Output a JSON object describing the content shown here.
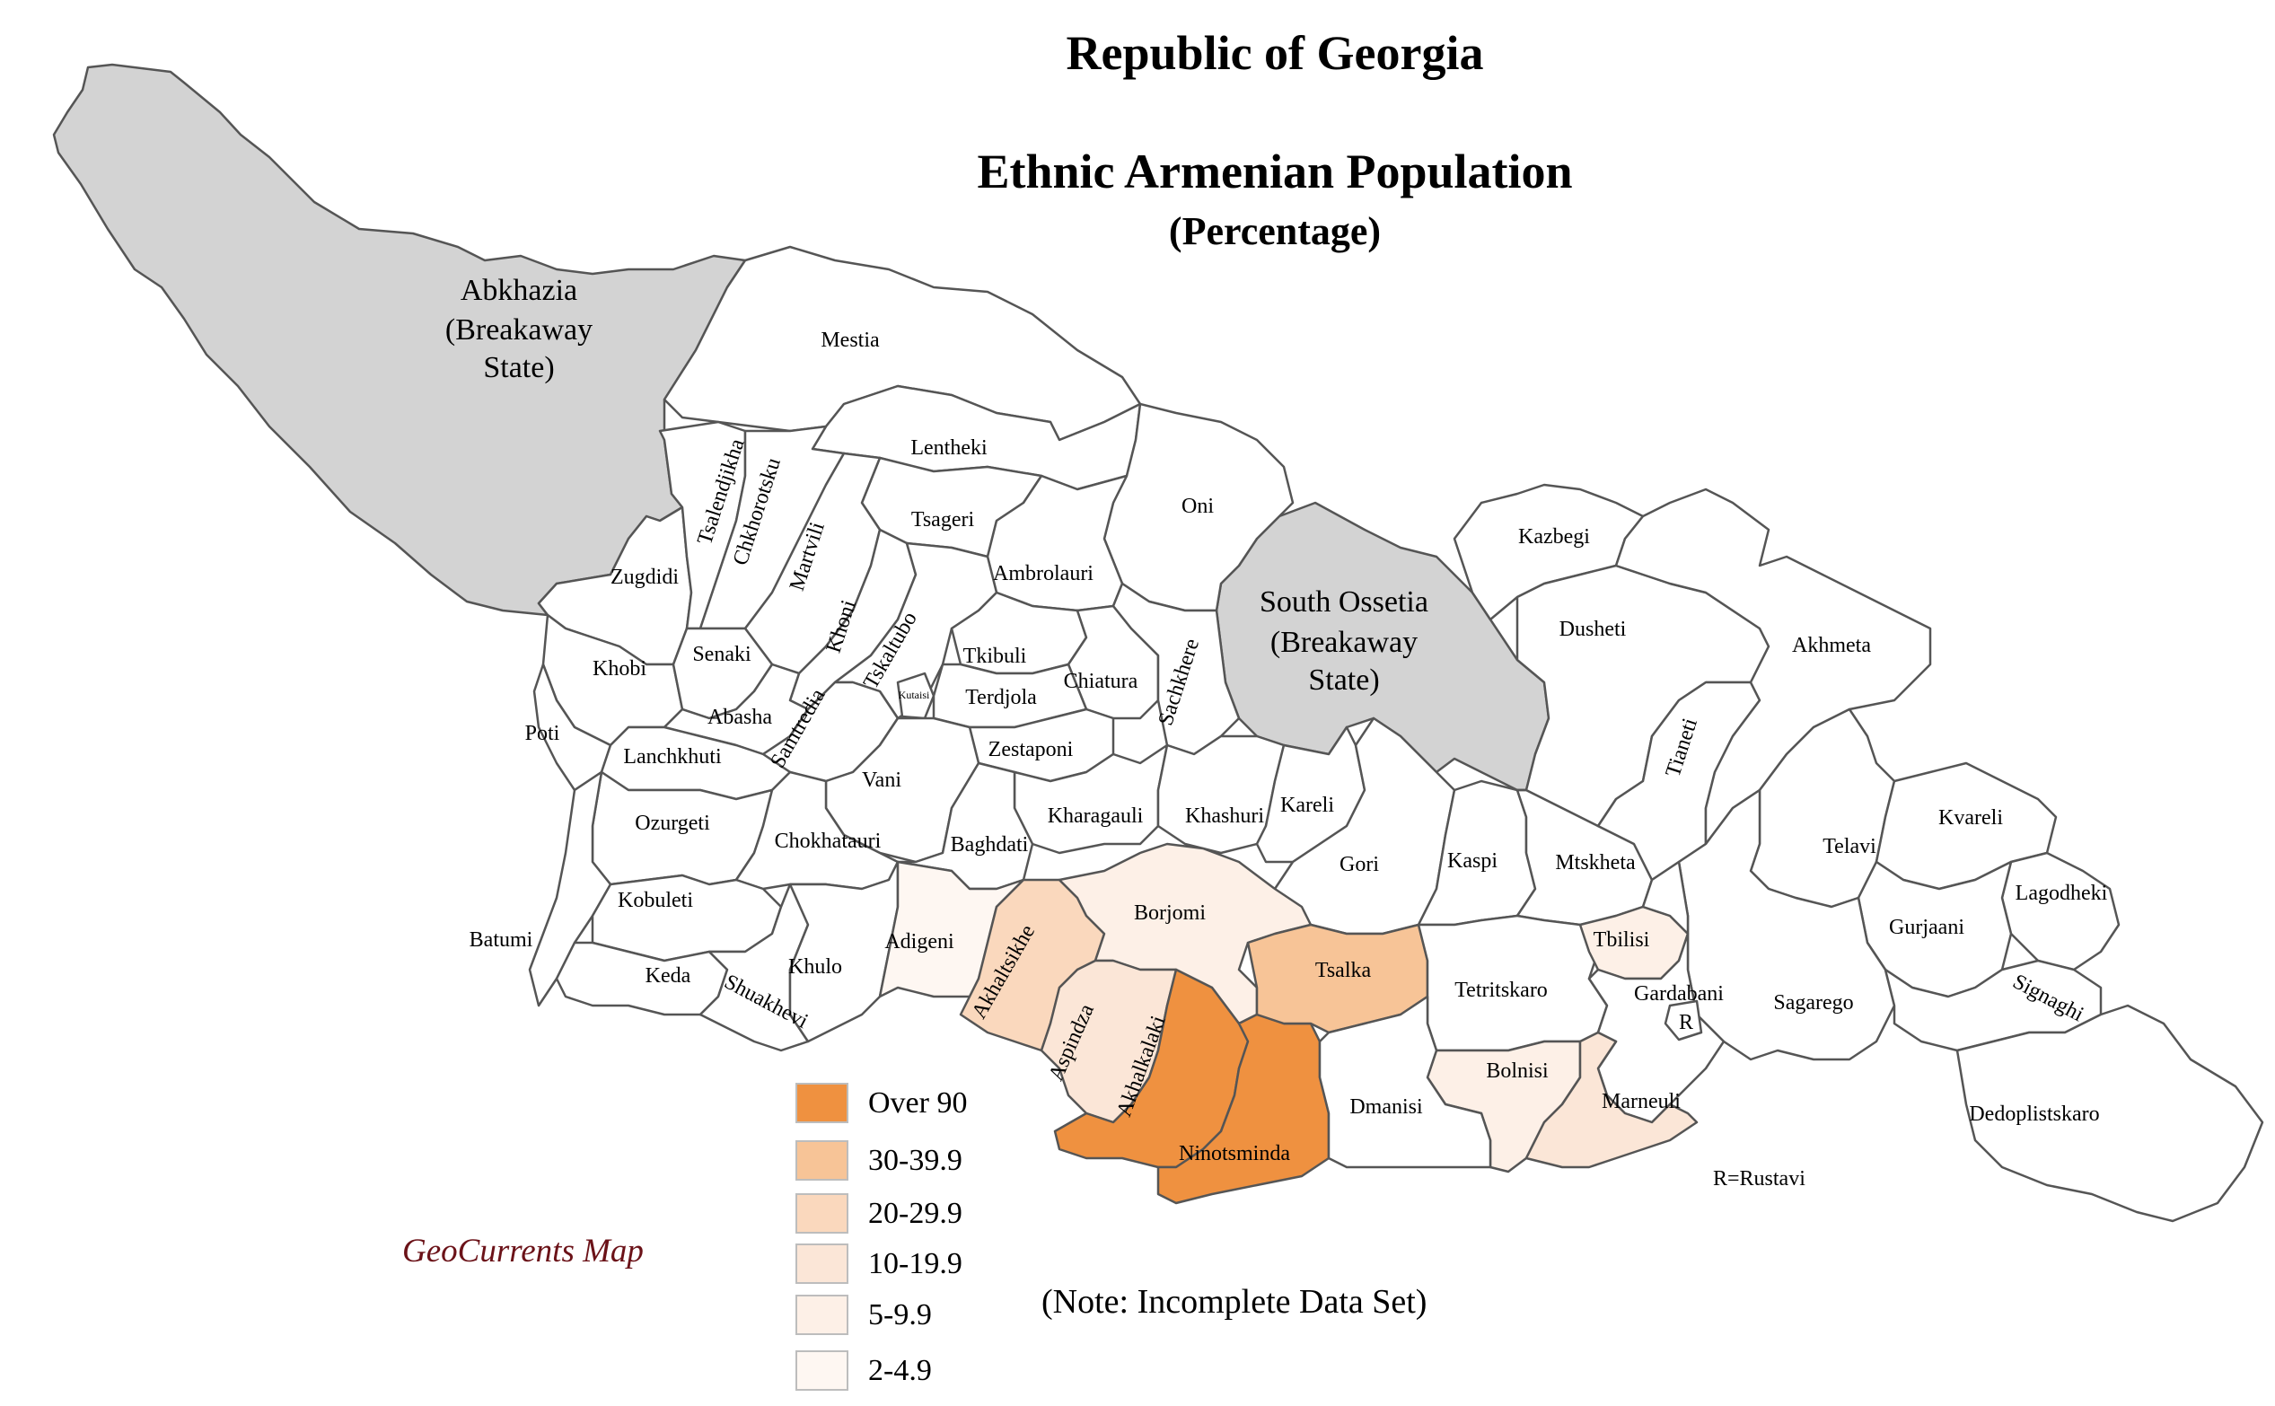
{
  "title": {
    "line1": "Republic of Georgia",
    "line2": "Ethnic Armenian Population",
    "line3": "(Percentage)"
  },
  "colors": {
    "over_90": "#ef9140",
    "c30_39": "#f7c497",
    "c20_29": "#fad8bd",
    "c10_19": "#fbe6d7",
    "c5_9": "#fdf0e7",
    "c2_4": "#fef7f2",
    "none": "#ffffff",
    "breakaway": "#d3d3d3",
    "border": "#555555"
  },
  "legend": [
    {
      "label": "Over 90",
      "color_key": "over_90"
    },
    {
      "label": "30-39.9",
      "color_key": "c30_39"
    },
    {
      "label": "20-29.9",
      "color_key": "c20_29"
    },
    {
      "label": "10-19.9",
      "color_key": "c10_19"
    },
    {
      "label": "5-9.9",
      "color_key": "c5_9"
    },
    {
      "label": "2-4.9",
      "color_key": "c2_4"
    }
  ],
  "regions": {
    "abkhazia": {
      "name": "Abkhazia",
      "sub1": "(Breakaway",
      "sub2": "State)",
      "category": "breakaway"
    },
    "south_ossetia": {
      "name": "South Ossetia",
      "sub1": "(Breakaway",
      "sub2": "State)",
      "category": "breakaway"
    },
    "akhalkalaki": {
      "name": "Akhalkalaki",
      "category": "over_90"
    },
    "ninotsminda": {
      "name": "Ninotsminda",
      "category": "over_90"
    },
    "tsalka": {
      "name": "Tsalka",
      "category": "c30_39"
    },
    "akhaltsikhe": {
      "name": "Akhaltsikhe",
      "category": "c20_29"
    },
    "aspindza": {
      "name": "Aspindza",
      "category": "c10_19"
    },
    "marneuli": {
      "name": "Marneuli",
      "category": "c10_19"
    },
    "borjomi": {
      "name": "Borjomi",
      "category": "c5_9"
    },
    "bolnisi": {
      "name": "Bolnisi",
      "category": "c5_9"
    },
    "tbilisi": {
      "name": "Tbilisi",
      "category": "c5_9"
    },
    "adigeni": {
      "name": "Adigeni",
      "category": "c2_4"
    },
    "mestia": {
      "name": "Mestia",
      "category": "none"
    },
    "lentheki": {
      "name": "Lentheki",
      "category": "none"
    },
    "oni": {
      "name": "Oni",
      "category": "none"
    },
    "tsageri": {
      "name": "Tsageri",
      "category": "none"
    },
    "ambrolauri": {
      "name": "Ambrolauri",
      "category": "none"
    },
    "kazbegi": {
      "name": "Kazbegi",
      "category": "none"
    },
    "dusheti": {
      "name": "Dusheti",
      "category": "none"
    },
    "akhmeta": {
      "name": "Akhmeta",
      "category": "none"
    },
    "tianeti": {
      "name": "Tianeti",
      "category": "none"
    },
    "zugdidi": {
      "name": "Zugdidi",
      "category": "none"
    },
    "tsalendjikha": {
      "name": "Tsalendjikha",
      "category": "none"
    },
    "chkhorotsku": {
      "name": "Chkhorotsku",
      "category": "none"
    },
    "martvili": {
      "name": "Martvili",
      "category": "none"
    },
    "khobi": {
      "name": "Khobi",
      "category": "none"
    },
    "senaki": {
      "name": "Senaki",
      "category": "none"
    },
    "khoni": {
      "name": "Khoni",
      "category": "none"
    },
    "tskaltubo": {
      "name": "Tskaltubo",
      "category": "none"
    },
    "kutaisi": {
      "name": "Kutaisi",
      "category": "none"
    },
    "tkibuli": {
      "name": "Tkibuli",
      "category": "none"
    },
    "chiatura": {
      "name": "Chiatura",
      "category": "none"
    },
    "sachkhere": {
      "name": "Sachkhere",
      "category": "none"
    },
    "poti": {
      "name": "Poti",
      "category": "none"
    },
    "abasha": {
      "name": "Abasha",
      "category": "none"
    },
    "samtredia": {
      "name": "Samtredia",
      "category": "none"
    },
    "terdjola": {
      "name": "Terdjola",
      "category": "none"
    },
    "lanchkhuti": {
      "name": "Lanchkhuti",
      "category": "none"
    },
    "zestaponi": {
      "name": "Zestaponi",
      "category": "none"
    },
    "vani": {
      "name": "Vani",
      "category": "none"
    },
    "kharagauli": {
      "name": "Kharagauli",
      "category": "none"
    },
    "khashuri": {
      "name": "Khashuri",
      "category": "none"
    },
    "kareli": {
      "name": "Kareli",
      "category": "none"
    },
    "ozurgeti": {
      "name": "Ozurgeti",
      "category": "none"
    },
    "chokhatauri": {
      "name": "Chokhatauri",
      "category": "none"
    },
    "baghdati": {
      "name": "Baghdati",
      "category": "none"
    },
    "gori": {
      "name": "Gori",
      "category": "none"
    },
    "kaspi": {
      "name": "Kaspi",
      "category": "none"
    },
    "mtskheta": {
      "name": "Mtskheta",
      "category": "none"
    },
    "telavi": {
      "name": "Telavi",
      "category": "none"
    },
    "kvareli": {
      "name": "Kvareli",
      "category": "none"
    },
    "lagodheki": {
      "name": "Lagodheki",
      "category": "none"
    },
    "gurjaani": {
      "name": "Gurjaani",
      "category": "none"
    },
    "batumi": {
      "name": "Batumi",
      "category": "none"
    },
    "kobuleti": {
      "name": "Kobuleti",
      "category": "none"
    },
    "keda": {
      "name": "Keda",
      "category": "none"
    },
    "shuakhevi": {
      "name": "Shuakhevi",
      "category": "none"
    },
    "khulo": {
      "name": "Khulo",
      "category": "none"
    },
    "tetritskaro": {
      "name": "Tetritskaro",
      "category": "none"
    },
    "gardabani": {
      "name": "Gardabani",
      "category": "none"
    },
    "rustavi": {
      "name": "R",
      "category": "none"
    },
    "sagarego": {
      "name": "Sagarego",
      "category": "none"
    },
    "signaghi": {
      "name": "Signaghi",
      "category": "none"
    },
    "dmanisi": {
      "name": "Dmanisi",
      "category": "none"
    },
    "dedoplistskaro": {
      "name": "Dedoplistskaro",
      "category": "none"
    }
  },
  "rustavi_note": "R=Rustavi",
  "credit": "GeoCurrents Map",
  "note": "(Note: Incomplete Data Set)"
}
